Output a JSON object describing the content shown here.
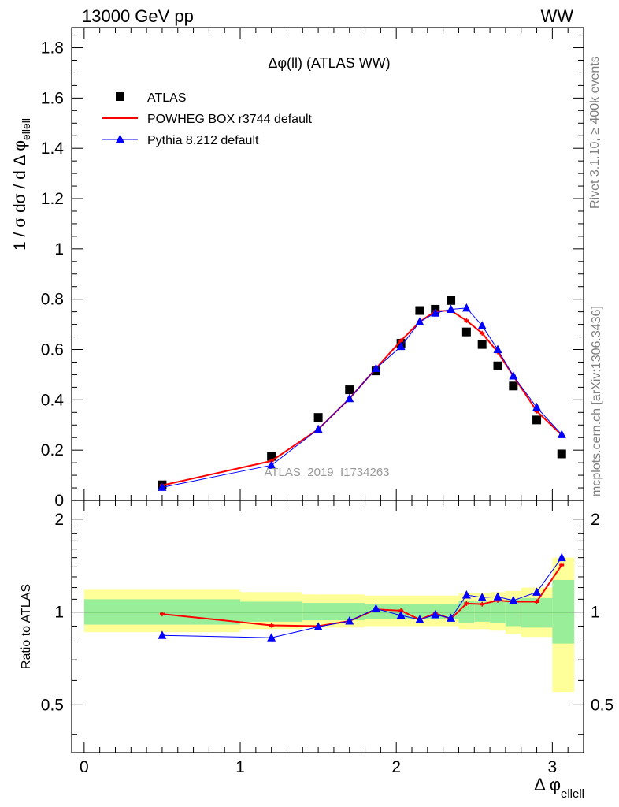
{
  "header": {
    "left": "13000 GeV pp",
    "right": "WW"
  },
  "side_labels": {
    "rivet": "Rivet 3.1.10, ≥ 400k events",
    "mcplots": "mcplots.cern.ch [arXiv:1306.3436]"
  },
  "chart_data": {
    "type": "line",
    "title": "Δφ(ll) (ATLAS WW)",
    "watermark": "ATLAS_2019_I1734263",
    "xlabel": "Δ φ",
    "xlabel_sub": "ellell",
    "ylabel": "1 / σ  dσ / d Δ φ",
    "ylabel_sub": "ellell",
    "ratio_ylabel": "Ratio to ATLAS",
    "xlim": [
      -0.08,
      3.2
    ],
    "ylim": [
      0,
      1.88
    ],
    "ratio_ylim": [
      0.35,
      2.3
    ],
    "x_ticks": [
      0,
      1,
      2,
      3
    ],
    "x_tick_labels": [
      "0",
      "1",
      "2",
      "3"
    ],
    "y_ticks": [
      0,
      0.2,
      0.4,
      0.6,
      0.8,
      1,
      1.2,
      1.4,
      1.6,
      1.8
    ],
    "y_tick_labels": [
      "0",
      "0.2",
      "0.4",
      "0.6",
      "0.8",
      "1",
      "1.2",
      "1.4",
      "1.6",
      "1.8"
    ],
    "ratio_ticks": [
      0.5,
      1,
      2
    ],
    "ratio_tick_labels": [
      "0.5",
      "1",
      "2"
    ],
    "x": [
      0.5,
      1.2,
      1.5,
      1.7,
      1.87,
      2.03,
      2.15,
      2.25,
      2.35,
      2.45,
      2.55,
      2.65,
      2.75,
      2.9,
      3.06
    ],
    "series": [
      {
        "name": "ATLAS",
        "color": "#000000",
        "marker": "square",
        "values": [
          0.062,
          0.175,
          0.33,
          0.44,
          0.515,
          0.625,
          0.755,
          0.76,
          0.795,
          0.67,
          0.62,
          0.535,
          0.455,
          0.32,
          0.185
        ]
      },
      {
        "name": "POWHEG BOX r3744 default",
        "color": "#ff0000",
        "marker": "line",
        "values": [
          0.06,
          0.157,
          0.283,
          0.405,
          0.525,
          0.635,
          0.71,
          0.752,
          0.755,
          0.715,
          0.665,
          0.59,
          0.495,
          0.355,
          0.26
        ],
        "ratio": [
          0.985,
          0.905,
          0.9,
          0.935,
          1.02,
          1.01,
          0.945,
          0.99,
          0.95,
          1.065,
          1.06,
          1.09,
          1.08,
          1.08,
          1.42
        ]
      },
      {
        "name": "Pythia 8.212 default",
        "color": "#0000ff",
        "marker": "triangle",
        "values": [
          0.052,
          0.14,
          0.283,
          0.405,
          0.525,
          0.612,
          0.71,
          0.745,
          0.76,
          0.765,
          0.695,
          0.6,
          0.495,
          0.37,
          0.262
        ],
        "ratio": [
          0.84,
          0.825,
          0.895,
          0.935,
          1.025,
          0.975,
          0.945,
          0.98,
          0.955,
          1.135,
          1.115,
          1.12,
          1.09,
          1.16,
          1.5
        ]
      }
    ],
    "ratio_bands": {
      "bins": [
        [
          0,
          1
        ],
        [
          1,
          1.4
        ],
        [
          1.4,
          1.8
        ],
        [
          1.8,
          2.4
        ],
        [
          2.4,
          2.5
        ],
        [
          2.5,
          2.6
        ],
        [
          2.6,
          2.7
        ],
        [
          2.7,
          2.8
        ],
        [
          2.8,
          3.0
        ],
        [
          3.0,
          3.14
        ]
      ],
      "inner_color": "#99ee99",
      "outer_color": "#ffff99",
      "inner": [
        [
          0.91,
          1.1
        ],
        [
          0.93,
          1.08
        ],
        [
          0.94,
          1.07
        ],
        [
          0.95,
          1.06
        ],
        [
          0.92,
          1.09
        ],
        [
          0.93,
          1.08
        ],
        [
          0.92,
          1.08
        ],
        [
          0.9,
          1.1
        ],
        [
          0.89,
          1.11
        ],
        [
          0.79,
          1.27
        ]
      ],
      "outer": [
        [
          0.86,
          1.18
        ],
        [
          0.88,
          1.16
        ],
        [
          0.89,
          1.14
        ],
        [
          0.9,
          1.13
        ],
        [
          0.88,
          1.15
        ],
        [
          0.88,
          1.15
        ],
        [
          0.87,
          1.16
        ],
        [
          0.85,
          1.17
        ],
        [
          0.83,
          1.2
        ],
        [
          0.55,
          1.5
        ]
      ]
    }
  }
}
